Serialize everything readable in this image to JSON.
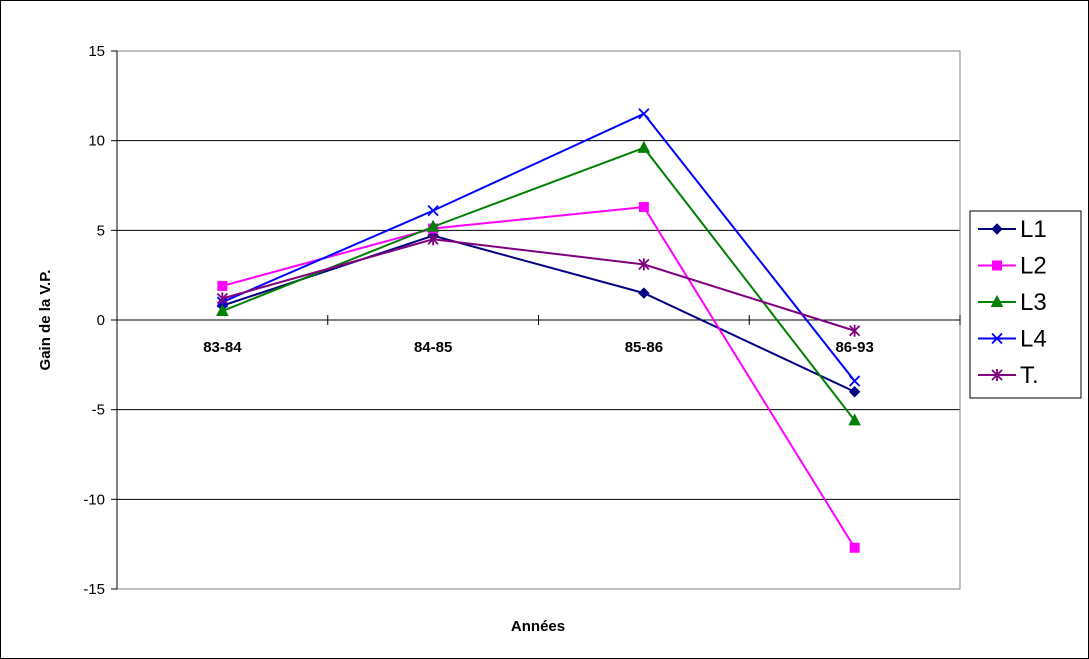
{
  "chart_data": {
    "type": "line",
    "categories": [
      "83-84",
      "84-85",
      "85-86",
      "86-93"
    ],
    "series": [
      {
        "name": "L1",
        "values": [
          0.8,
          4.7,
          1.5,
          -4.0
        ],
        "color": "#000080",
        "marker": "diamond"
      },
      {
        "name": "L2",
        "values": [
          1.9,
          5.1,
          6.3,
          -12.7
        ],
        "color": "#FF00FF",
        "marker": "square"
      },
      {
        "name": "L3",
        "values": [
          0.5,
          5.2,
          9.6,
          -5.6
        ],
        "color": "#008000",
        "marker": "triangle"
      },
      {
        "name": "L4",
        "values": [
          1.0,
          6.1,
          11.5,
          -3.4
        ],
        "color": "#0000FF",
        "marker": "x"
      },
      {
        "name": "T.",
        "values": [
          1.2,
          4.5,
          3.1,
          -0.6
        ],
        "color": "#800080",
        "marker": "star"
      }
    ],
    "xlabel": "Années",
    "ylabel": "Gain de la V.P.",
    "ylim": [
      -15,
      15
    ],
    "yticks": [
      "15",
      "10",
      "5",
      "0",
      "-5",
      "-10",
      "-15"
    ],
    "ytick_values": [
      15,
      10,
      5,
      0,
      -5,
      -10,
      -15
    ],
    "grid": true,
    "legend": "right"
  }
}
